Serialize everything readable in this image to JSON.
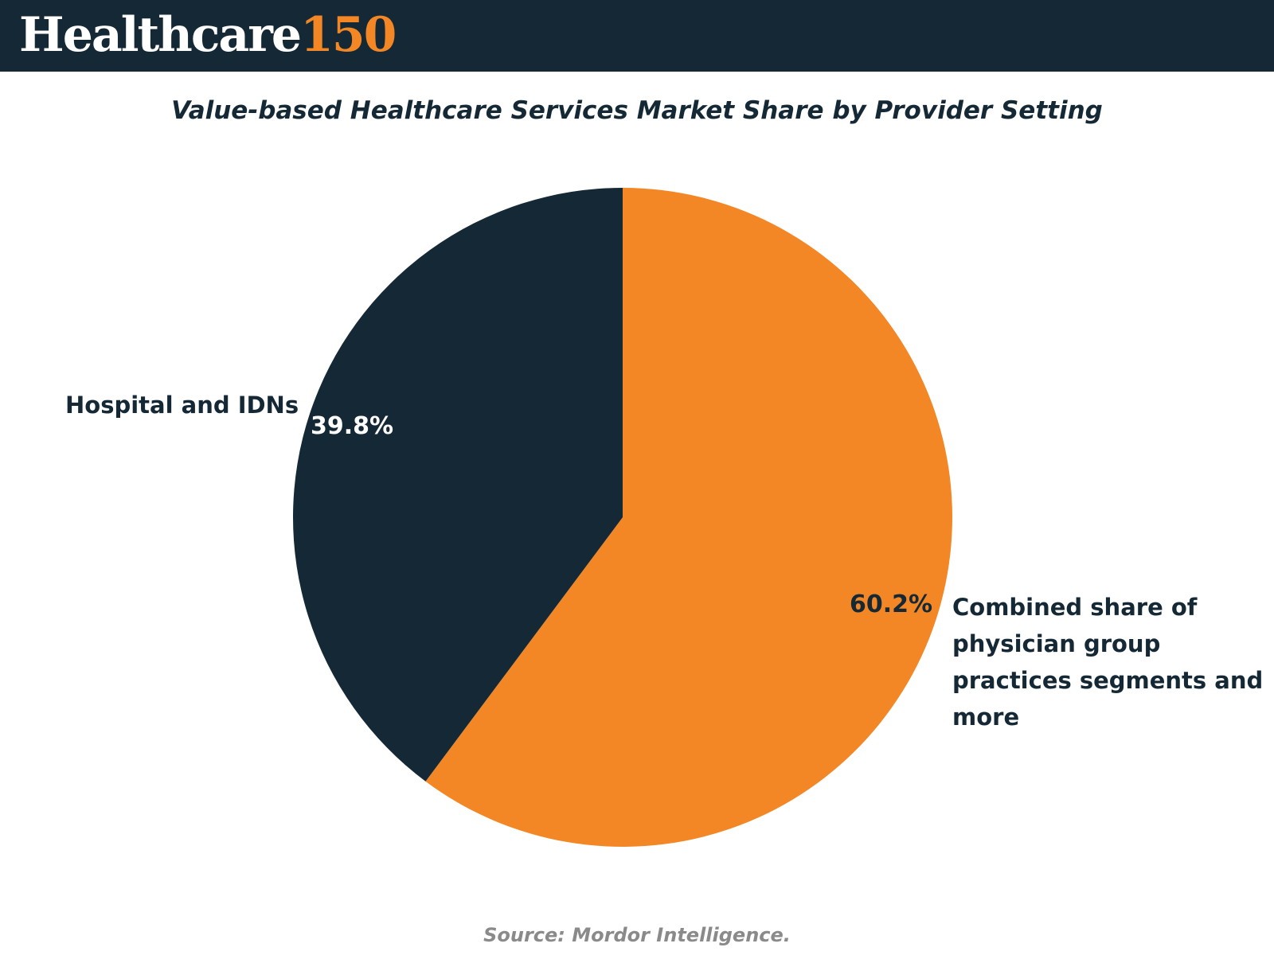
{
  "header": {
    "logo_word": "Healthcare",
    "logo_number": "150",
    "colors": {
      "banner": "#142935",
      "logo_word": "#ffffff",
      "logo_number": "#f38726"
    }
  },
  "chart_data": {
    "type": "pie",
    "title": "Value-based Healthcare Services Market Share by Provider Setting",
    "slices": [
      {
        "label": "Hospital and IDNs",
        "value": 39.8,
        "display": "39.8%",
        "color": "#142935"
      },
      {
        "label": "Combined share of physician group practices segments and more",
        "value": 60.2,
        "display": "60.2%",
        "color": "#f38726"
      }
    ],
    "start_angle": "12 o'clock",
    "direction": "clockwise, orange slice first"
  },
  "footer": {
    "source": "Source: Mordor Intelligence."
  }
}
